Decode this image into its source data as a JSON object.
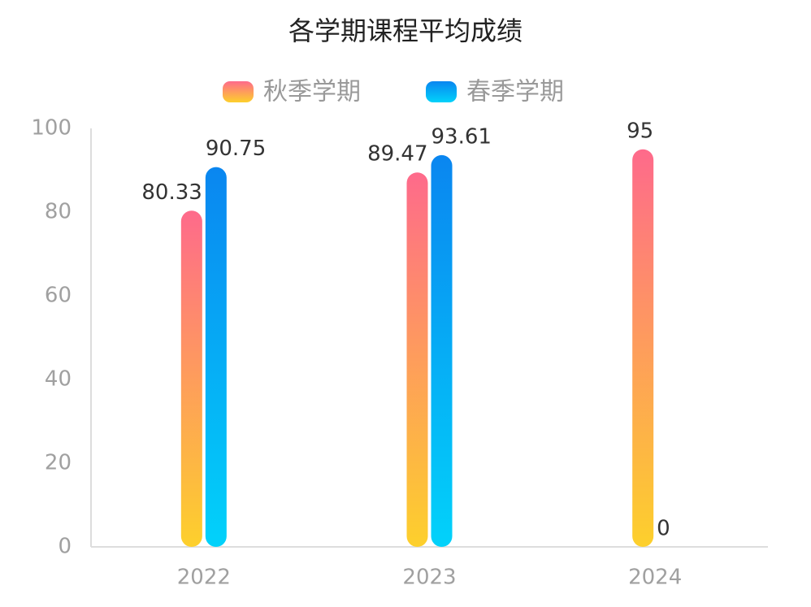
{
  "chart_data": {
    "type": "bar",
    "title": "各学期课程平均成绩",
    "categories": [
      "2022",
      "2023",
      "2024"
    ],
    "series": [
      {
        "name": "秋季学期",
        "color": [
          "#fe6a8b",
          "#fdd02c"
        ],
        "values": [
          80.33,
          89.47,
          95
        ]
      },
      {
        "name": "春季学期",
        "color": [
          "#0a86f0",
          "#02d2fa"
        ],
        "values": [
          90.75,
          93.61,
          0
        ]
      }
    ],
    "ylim": [
      0,
      100
    ],
    "yticks": [
      0,
      20,
      40,
      60,
      80,
      100
    ],
    "grid": false,
    "legend": "top"
  }
}
